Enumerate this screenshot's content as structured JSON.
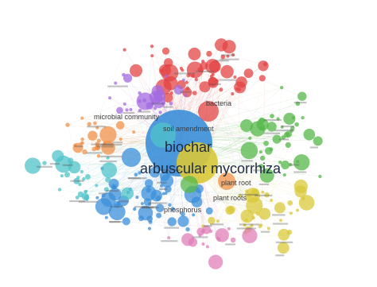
{
  "network": {
    "type": "keyword co-occurrence map",
    "labels": {
      "biochar": "biochar",
      "arbuscular_mycorrhiza": "arbuscular mycorrhiza",
      "soil_amendment": "soil amendment",
      "microbial_community": "microbial community",
      "plant_root": "plant root",
      "plant_roots": "plant roots",
      "phosphorus": "phosphorus",
      "bacteria": "bacteria"
    },
    "clusters": [
      {
        "color": "#e34444"
      },
      {
        "color": "#3b8fd9"
      },
      {
        "color": "#56b84a"
      },
      {
        "color": "#d9c83a"
      },
      {
        "color": "#a46be0"
      },
      {
        "color": "#f0924a"
      },
      {
        "color": "#4fc3c9"
      },
      {
        "color": "#e07fb8"
      }
    ]
  }
}
